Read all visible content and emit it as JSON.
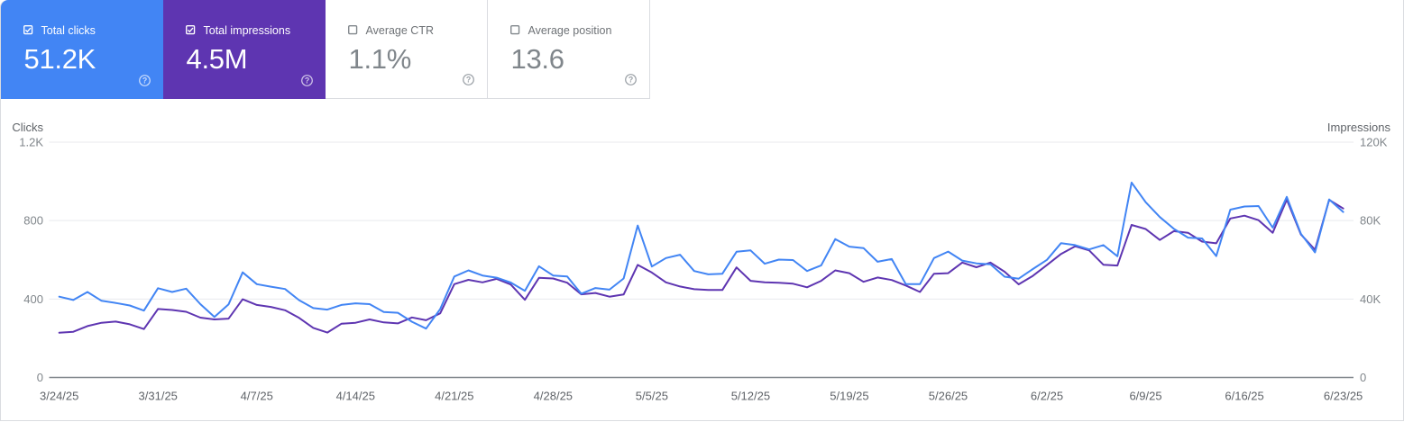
{
  "cards": [
    {
      "label": "Total clicks",
      "value": "51.2K",
      "checked": true,
      "bg": "#4285f4",
      "style": "colored"
    },
    {
      "label": "Total impressions",
      "value": "4.5M",
      "checked": true,
      "bg": "#5e35b1",
      "style": "colored"
    },
    {
      "label": "Average CTR",
      "value": "1.1%",
      "checked": false,
      "bg": "#ffffff",
      "style": "white"
    },
    {
      "label": "Average position",
      "value": "13.6",
      "checked": false,
      "bg": "#ffffff",
      "style": "white"
    }
  ],
  "chart_data": {
    "type": "line",
    "x": [
      "3/24/25",
      "3/25/25",
      "3/26/25",
      "3/27/25",
      "3/28/25",
      "3/29/25",
      "3/30/25",
      "3/31/25",
      "4/1/25",
      "4/2/25",
      "4/3/25",
      "4/4/25",
      "4/5/25",
      "4/6/25",
      "4/7/25",
      "4/8/25",
      "4/9/25",
      "4/10/25",
      "4/11/25",
      "4/12/25",
      "4/13/25",
      "4/14/25",
      "4/15/25",
      "4/16/25",
      "4/17/25",
      "4/18/25",
      "4/19/25",
      "4/20/25",
      "4/21/25",
      "4/22/25",
      "4/23/25",
      "4/24/25",
      "4/25/25",
      "4/26/25",
      "4/27/25",
      "4/28/25",
      "4/29/25",
      "4/30/25",
      "5/1/25",
      "5/2/25",
      "5/3/25",
      "5/4/25",
      "5/5/25",
      "5/6/25",
      "5/7/25",
      "5/8/25",
      "5/9/25",
      "5/10/25",
      "5/11/25",
      "5/12/25",
      "5/13/25",
      "5/14/25",
      "5/15/25",
      "5/16/25",
      "5/17/25",
      "5/18/25",
      "5/19/25",
      "5/20/25",
      "5/21/25",
      "5/22/25",
      "5/23/25",
      "5/24/25",
      "5/25/25",
      "5/26/25",
      "5/27/25",
      "5/28/25",
      "5/29/25",
      "5/30/25",
      "5/31/25",
      "6/1/25",
      "6/2/25",
      "6/3/25",
      "6/4/25",
      "6/5/25",
      "6/6/25",
      "6/7/25",
      "6/8/25",
      "6/9/25",
      "6/10/25",
      "6/11/25",
      "6/12/25",
      "6/13/25",
      "6/14/25",
      "6/15/25",
      "6/16/25",
      "6/17/25",
      "6/18/25",
      "6/19/25",
      "6/20/25",
      "6/21/25",
      "6/22/25",
      "6/23/25"
    ],
    "x_tick_labels": [
      "3/24/25",
      "3/31/25",
      "4/7/25",
      "4/14/25",
      "4/21/25",
      "4/28/25",
      "5/5/25",
      "5/12/25",
      "5/19/25",
      "5/26/25",
      "6/2/25",
      "6/9/25",
      "6/16/25",
      "6/23/25"
    ],
    "series": [
      {
        "name": "Clicks",
        "axis": "left",
        "color": "#4285f4",
        "values": [
          412,
          395,
          436,
          391,
          380,
          367,
          341,
          455,
          436,
          453,
          374,
          309,
          373,
          536,
          476,
          463,
          451,
          394,
          354,
          346,
          370,
          378,
          374,
          334,
          330,
          284,
          249,
          349,
          515,
          546,
          520,
          509,
          484,
          442,
          567,
          520,
          515,
          427,
          456,
          448,
          505,
          775,
          566,
          609,
          626,
          543,
          526,
          529,
          641,
          648,
          580,
          601,
          599,
          543,
          572,
          706,
          667,
          660,
          590,
          604,
          476,
          476,
          609,
          642,
          596,
          582,
          577,
          514,
          504,
          553,
          600,
          685,
          675,
          653,
          675,
          618,
          994,
          894,
          818,
          758,
          713,
          709,
          619,
          856,
          872,
          874,
          764,
          921,
          733,
          638,
          908,
          844
        ]
      },
      {
        "name": "Impressions",
        "axis": "right",
        "color": "#5e35b1",
        "values": [
          22800,
          23300,
          26200,
          27900,
          28500,
          27100,
          24700,
          34900,
          34400,
          33500,
          30500,
          29600,
          30000,
          39900,
          37000,
          36000,
          34300,
          30400,
          25300,
          22900,
          27400,
          27900,
          29600,
          28100,
          27600,
          30600,
          29200,
          32700,
          47600,
          49800,
          48500,
          50300,
          47400,
          39600,
          50800,
          50500,
          48300,
          42400,
          43100,
          41200,
          42300,
          57400,
          53500,
          48500,
          46400,
          45000,
          44600,
          44600,
          56100,
          49300,
          48500,
          48300,
          47800,
          46000,
          49300,
          54600,
          53200,
          48800,
          51000,
          49700,
          46900,
          43600,
          52900,
          53200,
          58600,
          56200,
          58600,
          53900,
          47500,
          51800,
          57300,
          63000,
          66900,
          64800,
          57500,
          57100,
          77800,
          75700,
          70100,
          74600,
          73800,
          69300,
          68400,
          81100,
          82500,
          80200,
          73800,
          90700,
          72900,
          65100,
          90600,
          86200
        ]
      }
    ],
    "left_axis": {
      "title": "Clicks",
      "min": 0,
      "max": 1200,
      "tick_labels": [
        "1.2K",
        "800",
        "400",
        "0"
      ]
    },
    "right_axis": {
      "title": "Impressions",
      "min": 0,
      "max": 120000,
      "tick_labels": [
        "120K",
        "80K",
        "40K",
        "0"
      ]
    },
    "grid": true,
    "legend_position": "none"
  },
  "icons": {
    "checkbox_checked": "checkbox-checked",
    "checkbox_unchecked": "checkbox-unchecked",
    "help": "question-mark-circle",
    "help_glyph": "?"
  },
  "colors": {
    "clicks_accent": "#4285f4",
    "impressions_accent": "#5e35b1",
    "grid_line": "#e8eaed",
    "axis_line": "#80868b",
    "tick_text": "#80868b",
    "date_text": "#5f6368",
    "axis_title_text": "#5f6368",
    "card_border": "#dadce0"
  }
}
